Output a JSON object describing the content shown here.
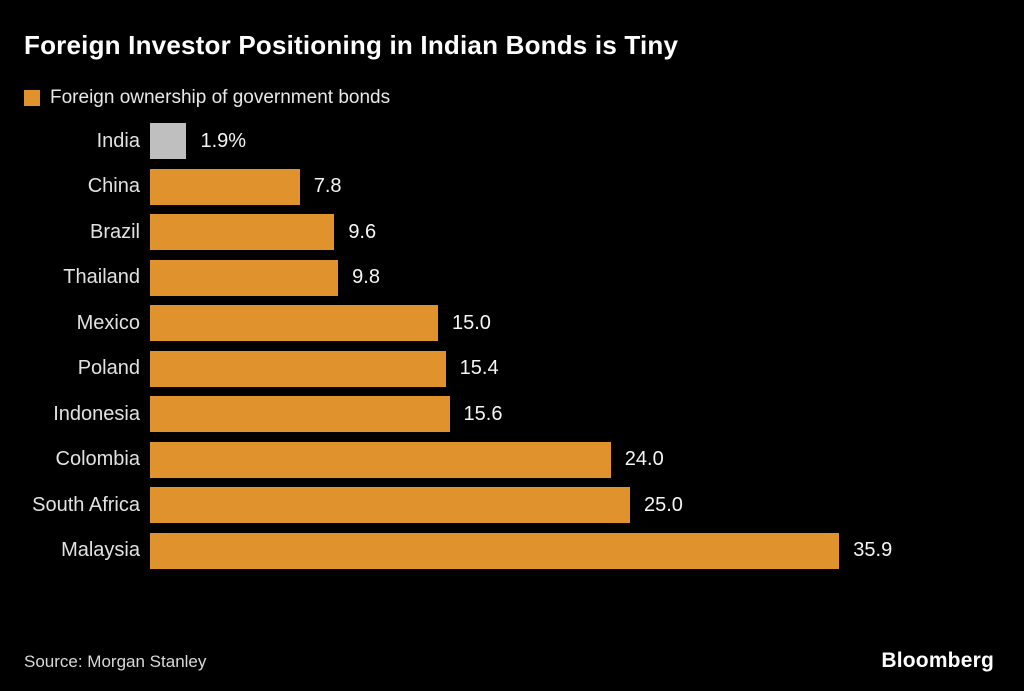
{
  "title": "Foreign Investor Positioning in Indian Bonds is Tiny",
  "legend": {
    "label": "Foreign ownership of government bonds"
  },
  "source": "Source: Morgan Stanley",
  "brand": "Bloomberg",
  "colors": {
    "background": "#000000",
    "bar_orange": "#E0922D",
    "highlight_gray": "#BFBFBF",
    "title_text": "#FFFFFF",
    "label_text": "#E2E2E2"
  },
  "chart_data": {
    "type": "bar",
    "orientation": "horizontal",
    "title": "Foreign Investor Positioning in Indian Bonds is Tiny",
    "legend_entries": [
      "Foreign ownership of government bonds"
    ],
    "legend_position": "top-left",
    "grid": false,
    "xlim": [
      0,
      40
    ],
    "unit": "percent",
    "categories": [
      "India",
      "China",
      "Brazil",
      "Thailand",
      "Mexico",
      "Poland",
      "Indonesia",
      "Colombia",
      "South Africa",
      "Malaysia"
    ],
    "values": [
      1.9,
      7.8,
      9.6,
      9.8,
      15.0,
      15.4,
      15.6,
      24.0,
      25.0,
      35.9
    ],
    "value_labels": [
      "1.9%",
      "7.8",
      "9.6",
      "9.8",
      "15.0",
      "15.4",
      "15.6",
      "24.0",
      "25.0",
      "35.9"
    ],
    "highlight_category": "India",
    "annotation": "India bar shown in gray to highlight its small size versus peers"
  }
}
